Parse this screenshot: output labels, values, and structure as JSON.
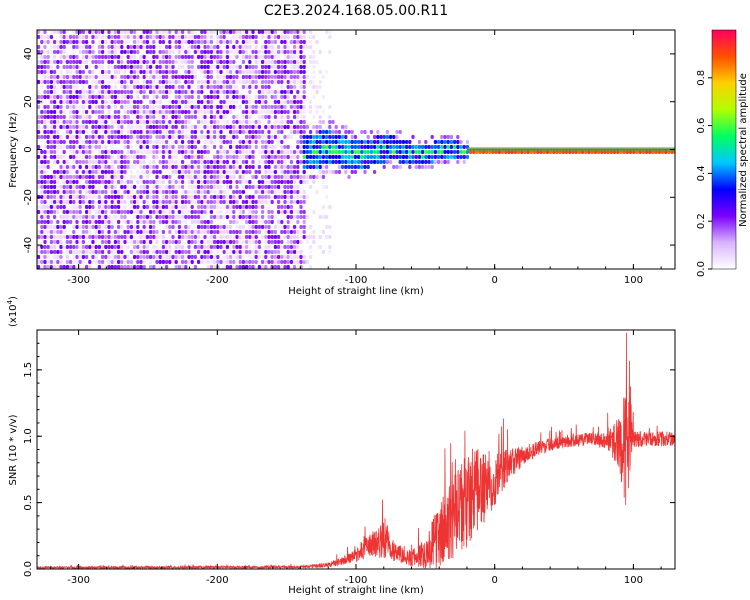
{
  "title": "C2E3.2024.168.05.00.R11",
  "chart_data": [
    {
      "type": "heatmap",
      "xlabel": "Height of straight line (km)",
      "ylabel": "Frequency (Hz)",
      "xlim": [
        -330,
        130
      ],
      "ylim": [
        -50,
        50
      ],
      "x_ticks": [
        -300,
        -200,
        -100,
        0,
        100
      ],
      "y_ticks": [
        -40,
        -20,
        0,
        20,
        40
      ],
      "colorbar": {
        "label": "Normalized spectral amplitude",
        "range": [
          0,
          1
        ],
        "ticks": [
          "0.0",
          "0.2",
          "0.4",
          "0.6",
          "0.8"
        ],
        "stops": [
          "#ffffff",
          "#d9b3ff",
          "#7a00ff",
          "#0000ff",
          "#00c8ff",
          "#00ff60",
          "#b0ff00",
          "#ffd000",
          "#ff5000",
          "#ff0060"
        ]
      },
      "regions": [
        {
          "x": [
            -330,
            -138
          ],
          "freq_spread": 50,
          "amplitude": 0.13,
          "description_level": "noise"
        },
        {
          "x": [
            -138,
            -120
          ],
          "freq_spread": 50,
          "amplitude": 0.04,
          "description_level": "faint"
        },
        {
          "x": [
            -138,
            -20
          ],
          "freq_spread": [
            8,
            3
          ],
          "amplitude": [
            0.35,
            0.4
          ]
        },
        {
          "x": [
            -20,
            130
          ],
          "freq_spread": 1,
          "amplitude": 0.9
        }
      ],
      "grid": false
    },
    {
      "type": "line",
      "xlabel": "Height of straight line (km)",
      "ylabel": "SNR (10 * v/v)",
      "ylabel_scale": "(x10",
      "ylabel_scale_exp": "4",
      "ylabel_scale_close": ")",
      "xlim": [
        -330,
        130
      ],
      "ylim": [
        0,
        1.8
      ],
      "x_ticks": [
        -300,
        -200,
        -100,
        0,
        100
      ],
      "y_ticks": [
        0.0,
        0.5,
        1.0,
        1.5
      ],
      "series": [
        {
          "color": "#ee3333",
          "envelope": {
            "x": [
              -330,
              -140,
              -120,
              -110,
              -100,
              -90,
              -80,
              -70,
              -60,
              -50,
              -40,
              -30,
              -20,
              -10,
              0,
              10,
              20,
              30,
              40,
              50,
              60,
              70,
              80,
              90,
              95,
              100,
              110,
              120,
              130
            ],
            "mean": [
              0.01,
              0.015,
              0.03,
              0.06,
              0.1,
              0.18,
              0.22,
              0.12,
              0.08,
              0.12,
              0.25,
              0.38,
              0.5,
              0.6,
              0.68,
              0.78,
              0.85,
              0.9,
              0.94,
              0.96,
              0.97,
              0.98,
              0.97,
              0.95,
              0.9,
              0.97,
              0.98,
              0.98,
              0.98
            ],
            "amp": [
              0.008,
              0.01,
              0.02,
              0.03,
              0.05,
              0.09,
              0.14,
              0.07,
              0.06,
              0.12,
              0.25,
              0.32,
              0.38,
              0.3,
              0.22,
              0.12,
              0.08,
              0.06,
              0.05,
              0.05,
              0.05,
              0.05,
              0.06,
              0.2,
              0.5,
              0.08,
              0.05,
              0.06,
              0.05
            ]
          },
          "peak": {
            "x": 95,
            "y": 1.78
          }
        }
      ],
      "grid": false
    }
  ]
}
